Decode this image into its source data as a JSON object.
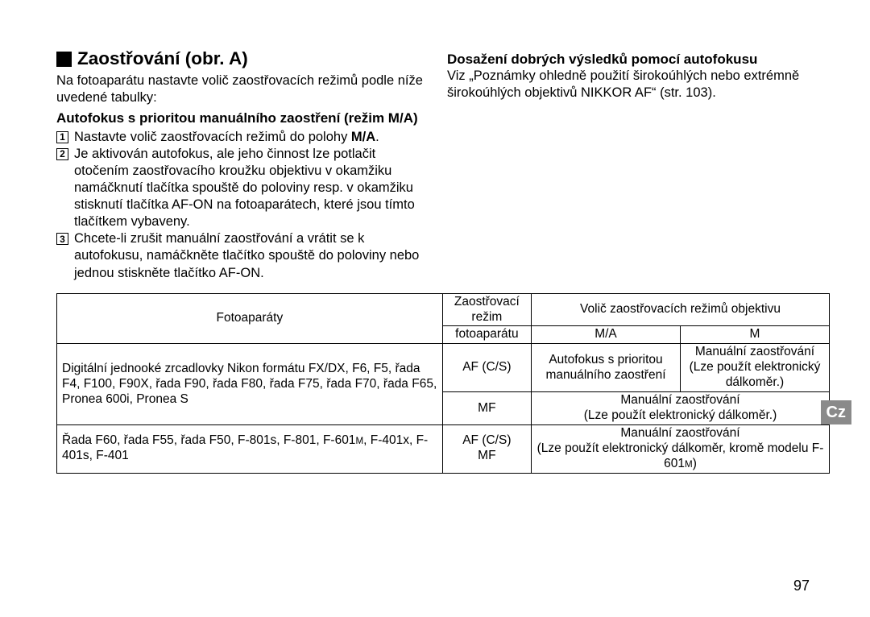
{
  "heading": "Zaostřování (obr. A)",
  "left": {
    "intro": "Na fotoaparátu nastavte volič zaostřovacích režimů podle níže uvedené tabulky:",
    "subhead": "Autofokus s prioritou manuálního zaostření (režim M/A)",
    "steps": [
      {
        "n": "1",
        "text_before": "Nastavte volič zaostřovacích režimů do polohy ",
        "bold": "M/A",
        "text_after": "."
      },
      {
        "n": "2",
        "text_before": "Je aktivován autofokus, ale jeho činnost lze potlačit otočením zaostřovacího kroužku objektivu v okamžiku namáčknutí tlačítka spouště do poloviny resp. v okamžiku stisknutí tlačítka AF-ON na fotoaparátech, které jsou tímto tlačítkem vybaveny.",
        "bold": "",
        "text_after": ""
      },
      {
        "n": "3",
        "text_before": "Chcete-li zrušit manuální zaostřování a vrátit se k autofokusu, namáčkněte tlačítko spouště do poloviny nebo jednou stiskněte tlačítko AF-ON.",
        "bold": "",
        "text_after": ""
      }
    ]
  },
  "right": {
    "subhead": "Dosažení dobrých výsledků pomocí autofokusu",
    "para": "Viz „Poznámky ohledně použití širokoúhlých nebo extrémně širokoúhlých objektivů NIKKOR AF“ (str. 103)."
  },
  "table": {
    "header": {
      "cameras": "Fotoaparáty",
      "focus_mode_1": "Zaostřovací režim",
      "focus_mode_2": "fotoaparátu",
      "lens_switch": "Volič zaostřovacích režimů objektivu",
      "ma": "M/A",
      "m": "M"
    },
    "rows": [
      {
        "cameras": "Digitální jednooké zrcadlovky Nikon formátu FX/DX, F6, F5, řada F4, F100, F90X, řada F90, řada F80, řada F75, řada F70, řada F65, Pronea 600i, Pronea S",
        "mode1": "AF (C/S)",
        "ma1": "Autofokus s prioritou manuálního zaostření",
        "m1": "Manuální zaostřování (Lze použít elektronický dálkoměr.)",
        "mode2": "MF",
        "merged2": "Manuální zaostřování\n(Lze použít elektronický dálkoměr.)"
      },
      {
        "cameras_main": "Řada F60, řada F55, řada F50, F-801s, F-801, F-601",
        "cameras_suffix": "M",
        "cameras_line2": ", F-401x, F-401s, F-401",
        "mode": "AF (C/S)\nMF",
        "merged_line1": "Manuální zaostřování",
        "merged_line2": "(Lze použít elektronický dálkoměr, kromě modelu F-601",
        "merged_suffix": "M",
        "merged_end": ")"
      }
    ]
  },
  "side_tab": "Cz",
  "page_number": "97"
}
